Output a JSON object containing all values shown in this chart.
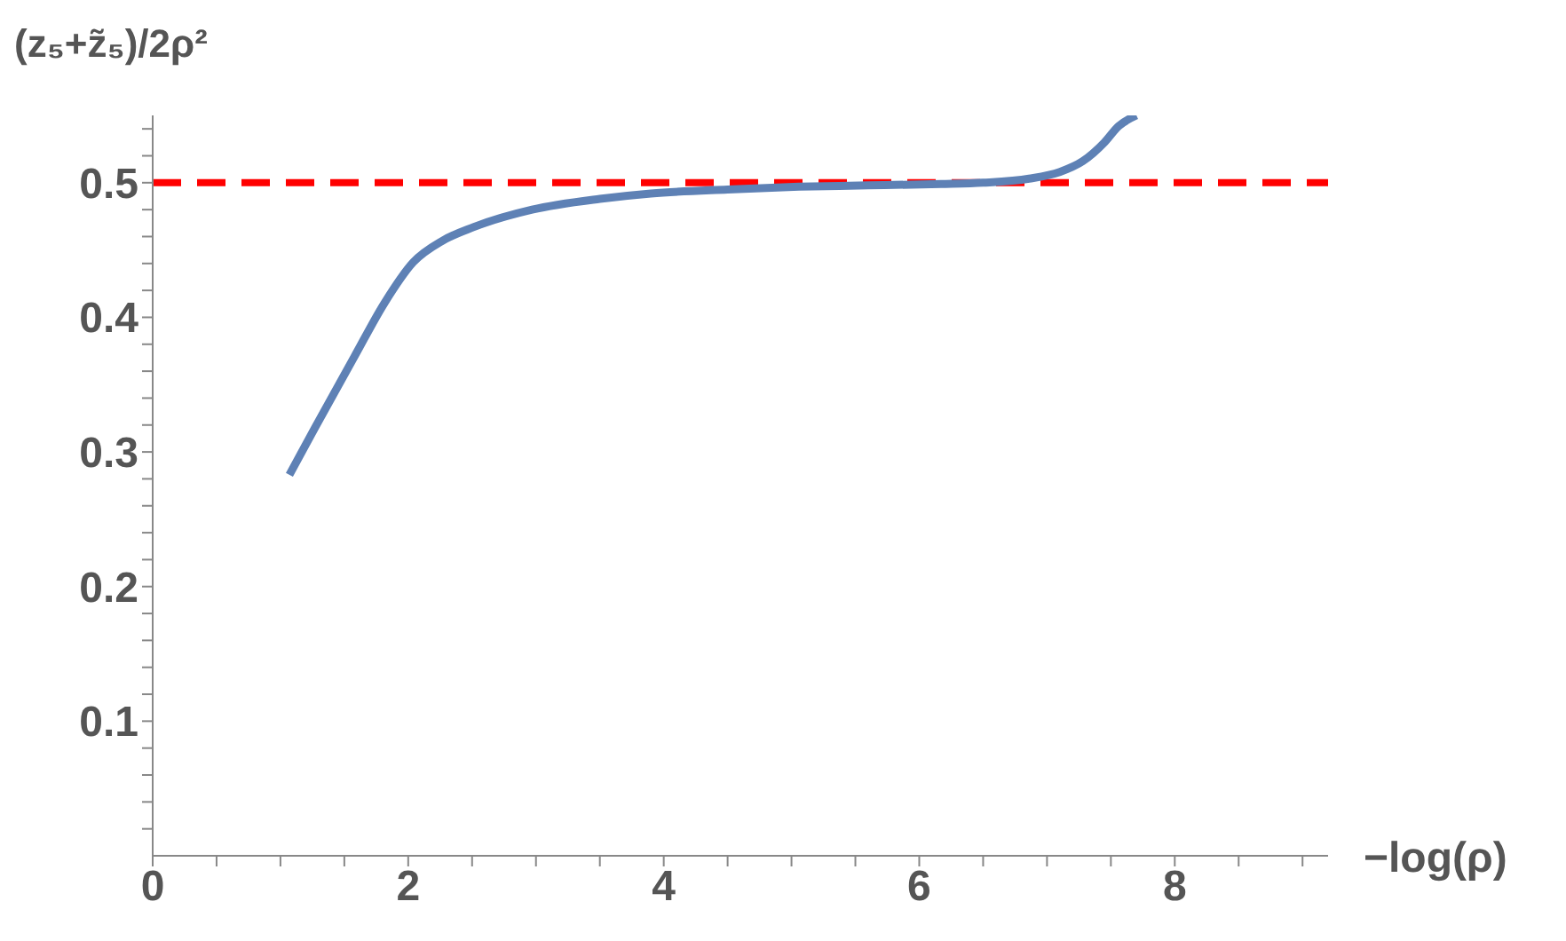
{
  "chart_data": {
    "type": "line",
    "xlabel": "−log(ρ)",
    "ylabel": "(z₅+z̃₅)/2ρ²",
    "xlim": [
      0,
      9.2
    ],
    "ylim": [
      0,
      0.55
    ],
    "xticks": [
      0,
      {
        "value": 0.5,
        "label": null
      },
      {
        "value": 1,
        "label": null
      },
      {
        "value": 1.5,
        "label": null
      },
      2,
      {
        "value": 2.5,
        "label": null
      },
      {
        "value": 3,
        "label": null
      },
      {
        "value": 3.5,
        "label": null
      },
      4,
      {
        "value": 4.5,
        "label": null
      },
      {
        "value": 5,
        "label": null
      },
      {
        "value": 5.5,
        "label": null
      },
      6,
      {
        "value": 6.5,
        "label": null
      },
      {
        "value": 7,
        "label": null
      },
      {
        "value": 7.5,
        "label": null
      },
      8,
      {
        "value": 8.5,
        "label": null
      },
      {
        "value": 9,
        "label": null
      }
    ],
    "yticks": [
      {
        "value": 0.02,
        "label": null
      },
      {
        "value": 0.04,
        "label": null
      },
      {
        "value": 0.06,
        "label": null
      },
      {
        "value": 0.08,
        "label": null
      },
      0.1,
      {
        "value": 0.12,
        "label": null
      },
      {
        "value": 0.14,
        "label": null
      },
      {
        "value": 0.16,
        "label": null
      },
      {
        "value": 0.18,
        "label": null
      },
      0.2,
      {
        "value": 0.22,
        "label": null
      },
      {
        "value": 0.24,
        "label": null
      },
      {
        "value": 0.26,
        "label": null
      },
      {
        "value": 0.28,
        "label": null
      },
      0.3,
      {
        "value": 0.32,
        "label": null
      },
      {
        "value": 0.34,
        "label": null
      },
      {
        "value": 0.36,
        "label": null
      },
      {
        "value": 0.38,
        "label": null
      },
      0.4,
      {
        "value": 0.42,
        "label": null
      },
      {
        "value": 0.44,
        "label": null
      },
      {
        "value": 0.46,
        "label": null
      },
      {
        "value": 0.48,
        "label": null
      },
      0.5,
      {
        "value": 0.52,
        "label": null
      },
      {
        "value": 0.54,
        "label": null
      }
    ],
    "grid": false,
    "line_style": "solid",
    "marker": "none",
    "series": [
      {
        "color": "#5e81b5",
        "x": [
          1.07,
          1.27,
          1.58,
          1.81,
          2.04,
          2.27,
          2.51,
          2.97,
          3.5,
          3.9,
          4.5,
          5.06,
          5.6,
          6.17,
          6.5,
          6.86,
          7.1,
          7.28,
          7.45,
          7.56,
          7.7
        ],
        "values": [
          0.283,
          0.318,
          0.371,
          0.41,
          0.441,
          0.457,
          0.467,
          0.48,
          0.488,
          0.492,
          0.495,
          0.497,
          0.498,
          0.499,
          0.5,
          0.503,
          0.508,
          0.516,
          0.53,
          0.542,
          0.55
        ]
      }
    ],
    "ref_lines": [
      {
        "axis": "y",
        "value": 0.5,
        "color": "#ff0000",
        "line_style": "dashed"
      }
    ]
  }
}
